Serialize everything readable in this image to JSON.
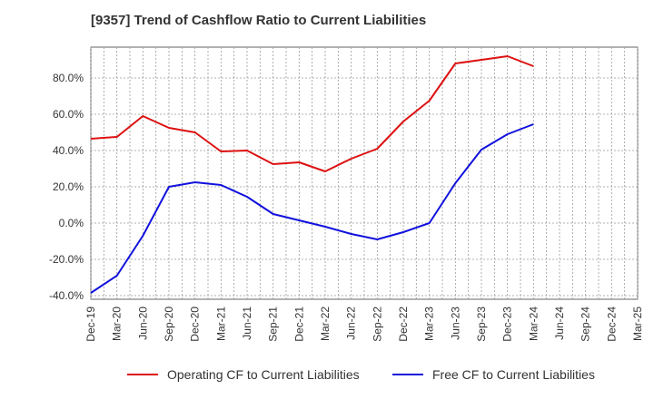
{
  "chart_data": {
    "type": "line",
    "title": "[9357]  Trend of Cashflow Ratio to Current Liabilities",
    "xlabel": "",
    "ylabel": "",
    "x": [
      "Dec-19",
      "Mar-20",
      "Jun-20",
      "Sep-20",
      "Dec-20",
      "Mar-21",
      "Jun-21",
      "Sep-21",
      "Dec-21",
      "Mar-22",
      "Jun-22",
      "Sep-22",
      "Dec-22",
      "Mar-23",
      "Jun-23",
      "Sep-23",
      "Dec-23",
      "Mar-24",
      "Jun-24",
      "Sep-24",
      "Dec-24",
      "Mar-25"
    ],
    "ylim": [
      -42,
      97
    ],
    "yticks": [
      -40,
      -20,
      0,
      20,
      40,
      60,
      80
    ],
    "ytick_labels": [
      "-40.0%",
      "-20.0%",
      "0.0%",
      "20.0%",
      "40.0%",
      "60.0%",
      "80.0%"
    ],
    "grid": true,
    "legend_position": "bottom",
    "series": [
      {
        "name": "Operating CF to Current Liabilities",
        "color": "#dd1111",
        "values": [
          46.5,
          47.5,
          59.0,
          52.5,
          50.0,
          39.5,
          40.0,
          32.5,
          33.5,
          28.5,
          35.5,
          41.0,
          56.0,
          67.5,
          88.0,
          90.0,
          92.0,
          86.5,
          null,
          null,
          null,
          null
        ]
      },
      {
        "name": "Free CF to Current Liabilities",
        "color": "#1111dd",
        "values": [
          -38.5,
          -29.0,
          -7.0,
          20.0,
          22.5,
          21.0,
          14.5,
          5.0,
          1.5,
          -2.0,
          -6.0,
          -9.0,
          -5.0,
          0.0,
          22.0,
          40.5,
          49.0,
          54.5,
          null,
          null,
          null,
          null
        ]
      }
    ]
  }
}
